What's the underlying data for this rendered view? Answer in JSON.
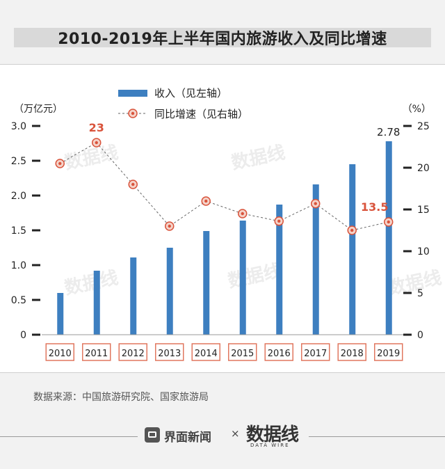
{
  "title": "2010-2019年上半年国内旅游收入及同比增速",
  "source": "数据来源：中国旅游研究院、国家旅游局",
  "footer": {
    "brand_name": "界面新闻",
    "times": "×",
    "brand2": "数据线",
    "brand2_sub": "DATA WIRE"
  },
  "watermark": "数据线",
  "colors": {
    "bar": "#3d7fc0",
    "line": "#666666",
    "point_fill": "#f4d3c9",
    "point_ring": "#d9533b",
    "highlight": "#d9533b",
    "category_border": "#e0775f"
  },
  "chart_data": {
    "type": "bar+line",
    "categories": [
      "2010",
      "2011",
      "2012",
      "2013",
      "2014",
      "2015",
      "2016",
      "2017",
      "2018",
      "2019"
    ],
    "series": [
      {
        "name": "收入（见左轴）",
        "type": "bar",
        "axis": "left",
        "values": [
          0.6,
          0.92,
          1.11,
          1.25,
          1.49,
          1.64,
          1.87,
          2.16,
          2.45,
          2.78
        ]
      },
      {
        "name": "同比增速（见右轴）",
        "type": "line",
        "axis": "right",
        "values": [
          20.5,
          23,
          18,
          13,
          16,
          14.5,
          13.6,
          15.7,
          12.5,
          13.5
        ]
      }
    ],
    "left_axis": {
      "label": "（万亿元）",
      "ylim": [
        0,
        3.0
      ],
      "ticks": [
        "0",
        "0.5",
        "1.0",
        "1.5",
        "2.0",
        "2.5",
        "3.0"
      ]
    },
    "right_axis": {
      "label": "（%）",
      "ylim": [
        0,
        25
      ],
      "ticks": [
        "0",
        "5",
        "10",
        "15",
        "20",
        "25"
      ]
    },
    "annotations": [
      {
        "series": "bar",
        "category": "2019",
        "text": "2.78"
      },
      {
        "series": "line",
        "category": "2011",
        "text": "23"
      },
      {
        "series": "line",
        "category": "2019",
        "text": "13.5"
      }
    ],
    "legend_position": "top-left"
  }
}
